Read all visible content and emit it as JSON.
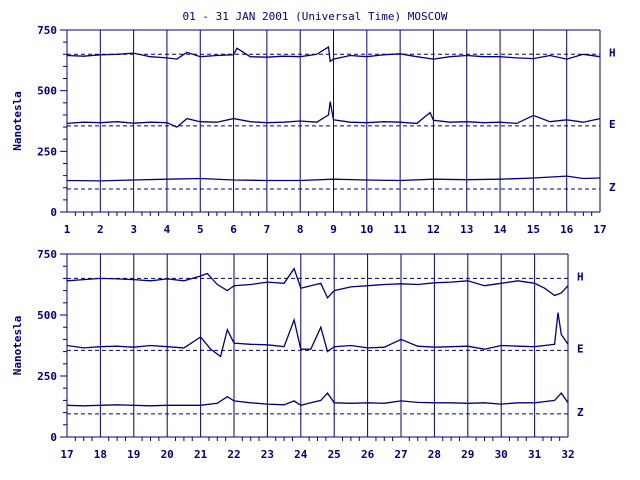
{
  "title": "01 - 31 JAN 2001 (Universal Time) MOSCOW",
  "colors": {
    "ink": "#000080",
    "background": "#ffffff"
  },
  "chart_data": [
    {
      "type": "line",
      "panel": "top",
      "xlim": [
        1,
        17
      ],
      "xticks": [
        "1",
        "2",
        "3",
        "4",
        "5",
        "6",
        "7",
        "8",
        "9",
        "10",
        "11",
        "12",
        "13",
        "14",
        "15",
        "16",
        "17"
      ],
      "ylabel": "Nanotesla",
      "ylim": [
        0,
        750
      ],
      "yticks": [
        "0",
        "250",
        "500",
        "750"
      ],
      "grid": "vertical lines at each day",
      "series": [
        {
          "name": "H",
          "baseline": 650,
          "x": [
            1,
            1.5,
            2,
            2.5,
            3,
            3.5,
            4,
            4.3,
            4.6,
            5,
            5.5,
            6,
            6.1,
            6.5,
            7,
            7.5,
            8,
            8.5,
            8.85,
            8.9,
            9,
            9.5,
            10,
            10.5,
            11,
            11.5,
            12,
            12.5,
            13,
            13.5,
            14,
            14.5,
            15,
            15.5,
            16,
            16.5,
            17
          ],
          "y": [
            645,
            642,
            648,
            650,
            655,
            640,
            635,
            630,
            658,
            640,
            645,
            648,
            675,
            640,
            638,
            642,
            640,
            650,
            680,
            620,
            630,
            645,
            640,
            648,
            652,
            640,
            630,
            640,
            645,
            640,
            640,
            635,
            632,
            645,
            630,
            650,
            640
          ]
        },
        {
          "name": "E",
          "baseline": 355,
          "x": [
            1,
            1.5,
            2,
            2.5,
            3,
            3.5,
            4,
            4.3,
            4.6,
            5,
            5.5,
            6,
            6.5,
            7,
            7.5,
            8,
            8.5,
            8.85,
            8.9,
            9,
            9.5,
            10,
            10.5,
            11,
            11.5,
            11.9,
            12,
            12.5,
            13,
            13.5,
            14,
            14.5,
            15,
            15.5,
            16,
            16.5,
            17
          ],
          "y": [
            365,
            370,
            368,
            372,
            366,
            370,
            368,
            350,
            385,
            372,
            370,
            385,
            372,
            368,
            370,
            375,
            370,
            400,
            455,
            380,
            370,
            368,
            372,
            370,
            365,
            410,
            378,
            370,
            372,
            368,
            370,
            365,
            398,
            372,
            380,
            370,
            385
          ]
        },
        {
          "name": "Z",
          "baseline": 95,
          "x": [
            1,
            2,
            3,
            4,
            5,
            6,
            7,
            8,
            9,
            10,
            11,
            12,
            13,
            14,
            15,
            16,
            16.5,
            17
          ],
          "y": [
            130,
            128,
            132,
            135,
            138,
            132,
            130,
            130,
            135,
            132,
            130,
            135,
            133,
            135,
            140,
            148,
            138,
            140
          ]
        }
      ]
    },
    {
      "type": "line",
      "panel": "bottom",
      "xlim": [
        17,
        32
      ],
      "xticks": [
        "17",
        "18",
        "19",
        "20",
        "21",
        "22",
        "23",
        "24",
        "25",
        "26",
        "27",
        "28",
        "29",
        "30",
        "31",
        "32"
      ],
      "ylabel": "Nanotesla",
      "ylim": [
        0,
        750
      ],
      "yticks": [
        "0",
        "250",
        "500",
        "750"
      ],
      "grid": "vertical lines at each day",
      "series": [
        {
          "name": "H",
          "baseline": 650,
          "x": [
            17,
            17.5,
            18,
            18.5,
            19,
            19.5,
            20,
            20.5,
            21,
            21.2,
            21.5,
            21.8,
            22,
            22.5,
            23,
            23.5,
            23.8,
            24,
            24.3,
            24.6,
            24.8,
            25,
            25.5,
            26,
            26.5,
            27,
            27.5,
            28,
            28.5,
            29,
            29.5,
            30,
            30.5,
            31,
            31.3,
            31.6,
            31.8,
            32
          ],
          "y": [
            640,
            645,
            650,
            648,
            645,
            640,
            648,
            640,
            660,
            670,
            625,
            600,
            620,
            625,
            635,
            630,
            690,
            610,
            620,
            630,
            570,
            600,
            615,
            620,
            625,
            628,
            625,
            632,
            635,
            640,
            620,
            630,
            640,
            630,
            610,
            580,
            590,
            620
          ]
        },
        {
          "name": "E",
          "baseline": 355,
          "x": [
            17,
            17.5,
            18,
            18.5,
            19,
            19.5,
            20,
            20.5,
            21,
            21.3,
            21.6,
            21.8,
            22,
            22.5,
            23,
            23.5,
            23.8,
            24,
            24.3,
            24.6,
            24.8,
            25,
            25.5,
            26,
            26.5,
            27,
            27.5,
            28,
            28.5,
            29,
            29.5,
            30,
            30.5,
            31,
            31.3,
            31.6,
            31.7,
            31.8,
            32
          ],
          "y": [
            375,
            365,
            370,
            372,
            368,
            375,
            370,
            365,
            410,
            360,
            330,
            440,
            385,
            380,
            378,
            370,
            480,
            360,
            360,
            450,
            350,
            370,
            375,
            365,
            368,
            400,
            372,
            368,
            370,
            372,
            360,
            375,
            372,
            370,
            375,
            380,
            510,
            420,
            380
          ]
        },
        {
          "name": "Z",
          "baseline": 95,
          "x": [
            17,
            17.5,
            18,
            18.5,
            19,
            19.5,
            20,
            20.5,
            21,
            21.5,
            21.8,
            22,
            22.5,
            23,
            23.5,
            23.8,
            24,
            24.3,
            24.6,
            24.8,
            25,
            25.5,
            26,
            26.5,
            27,
            27.5,
            28,
            28.5,
            29,
            29.5,
            30,
            30.5,
            31,
            31.3,
            31.6,
            31.8,
            32
          ],
          "y": [
            130,
            128,
            130,
            132,
            130,
            128,
            130,
            130,
            130,
            138,
            165,
            148,
            140,
            135,
            132,
            148,
            130,
            140,
            150,
            180,
            140,
            138,
            140,
            138,
            148,
            142,
            140,
            140,
            138,
            140,
            135,
            140,
            140,
            145,
            150,
            180,
            140
          ]
        }
      ]
    }
  ]
}
